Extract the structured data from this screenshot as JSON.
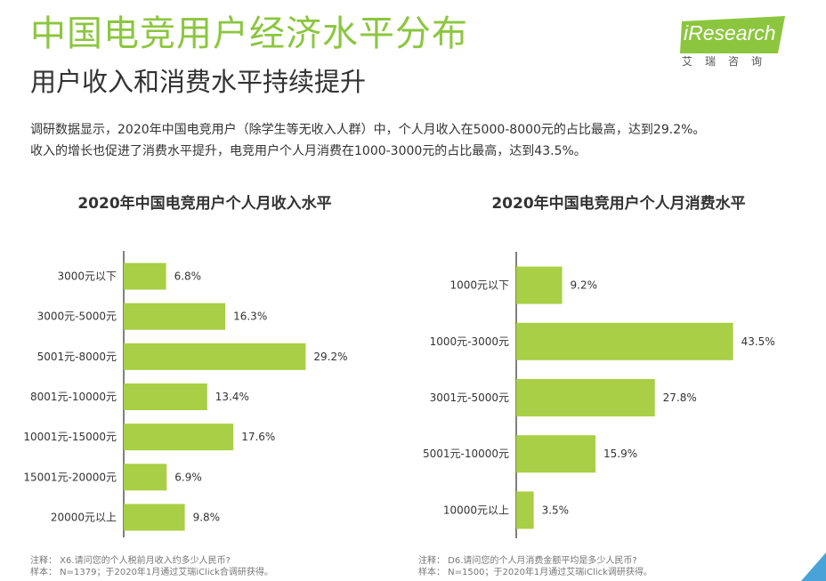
{
  "title": "中国电竞用户经济水平分布",
  "subtitle": "用户收入和消费水平持续提升",
  "description": [
    "调研数据显示，2020年中国电竞用户（除学生等无收入人群）中，个人月收入在5000-8000元的占比最高，达到29.2%。",
    "收入的增长也促进了消费水平提升，电竞用户个人月消费在1000-3000元的占比最高，达到43.5%。"
  ],
  "logo": {
    "brand": "iResearch",
    "sub": "艾瑞咨询"
  },
  "colors": {
    "bar": "#a8cf45",
    "accent": "#8cc63f",
    "axis": "#555555"
  },
  "chart_data": [
    {
      "type": "bar",
      "orientation": "horizontal",
      "title": "2020年中国电竞用户个人月收入水平",
      "categories": [
        "3000元以下",
        "3000元-5000元",
        "5001元-8000元",
        "8001元-10000元",
        "10001元-15000元",
        "15001元-20000元",
        "20000元以上"
      ],
      "values": [
        6.8,
        16.3,
        29.2,
        13.4,
        17.6,
        6.9,
        9.8
      ],
      "value_suffix": "%",
      "note_line1": "注释：  X6.请问您的个人税前月收入约多少人民币?",
      "note_line2": "样本：  N=1379；于2020年1月通过艾瑞iClick合调研获得。"
    },
    {
      "type": "bar",
      "orientation": "horizontal",
      "title": "2020年中国电竞用户个人月消费水平",
      "categories": [
        "1000元以下",
        "1000元-3000元",
        "3001元-5000元",
        "5001元-10000元",
        "10000元以上"
      ],
      "values": [
        9.2,
        43.5,
        27.8,
        15.9,
        3.5
      ],
      "value_suffix": "%",
      "note_line1": "注释：  D6.请问您的个人月消费金额平均是多少人民币?",
      "note_line2": "样本：  N=1500；于2020年1月通过艾瑞iClick调研获得。"
    }
  ]
}
